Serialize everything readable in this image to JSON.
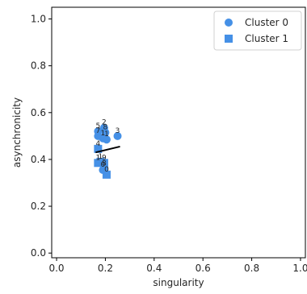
{
  "chart_data": {
    "type": "scatter",
    "title": "",
    "xlabel": "singularity",
    "ylabel": "asynchronicity",
    "xlim": [
      -0.02,
      1.02
    ],
    "ylim": [
      -0.02,
      1.05
    ],
    "xticks": [
      "0.0",
      "0.2",
      "0.4",
      "0.6",
      "0.8",
      "1.0"
    ],
    "yticks": [
      "0.0",
      "0.2",
      "0.4",
      "0.6",
      "0.8",
      "1.0"
    ],
    "grid": false,
    "legend_position": "top-right",
    "colors": {
      "cluster": "#4590e6",
      "line": "#000000"
    },
    "series": [
      {
        "name": "Cluster 0",
        "marker": "circle",
        "points": [
          {
            "label": "5",
            "x": 0.17,
            "y": 0.52
          },
          {
            "label": "2",
            "x": 0.195,
            "y": 0.535
          },
          {
            "label": "8",
            "x": 0.2,
            "y": 0.515
          },
          {
            "label": "3",
            "x": 0.25,
            "y": 0.5
          },
          {
            "label": "7",
            "x": 0.17,
            "y": 0.5
          },
          {
            "label": "1",
            "x": 0.19,
            "y": 0.49
          },
          {
            "label": "1",
            "x": 0.205,
            "y": 0.485
          },
          {
            "label": "0",
            "x": 0.19,
            "y": 0.355
          }
        ]
      },
      {
        "name": "Cluster 1",
        "marker": "square",
        "points": [
          {
            "label": "4",
            "x": 0.17,
            "y": 0.445
          },
          {
            "label": "1",
            "x": 0.17,
            "y": 0.385
          },
          {
            "label": "1",
            "x": 0.18,
            "y": 0.39
          },
          {
            "label": "9",
            "x": 0.195,
            "y": 0.385
          },
          {
            "label": "8",
            "x": 0.195,
            "y": 0.36
          },
          {
            "label": "0",
            "x": 0.205,
            "y": 0.335
          }
        ]
      }
    ],
    "line": {
      "x": [
        0.16,
        0.26
      ],
      "y": [
        0.43,
        0.455
      ]
    }
  }
}
